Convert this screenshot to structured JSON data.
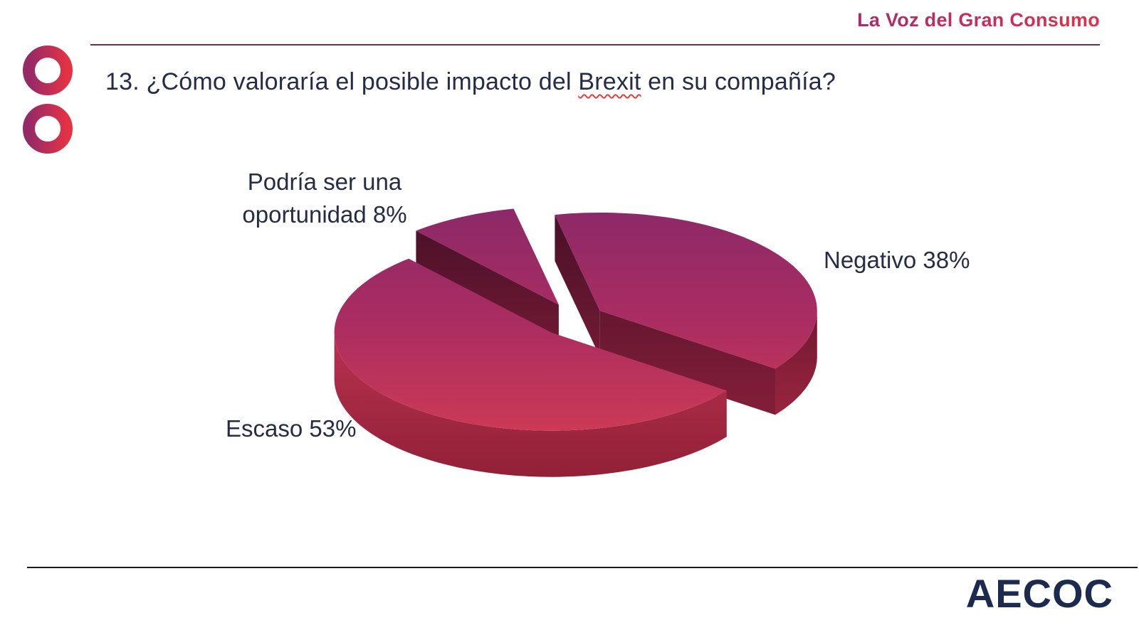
{
  "brand": {
    "text": "La Voz del Gran Consumo"
  },
  "header": {
    "title_pre": "13. ¿Cómo valoraría el posible impacto del ",
    "title_underlined_word": "Brexit",
    "title_post": " en su compañía?"
  },
  "chart_data": {
    "type": "pie",
    "style": "3d-exploded",
    "title": "13. ¿Cómo valoraría el posible impacto del Brexit en su compañía?",
    "legend_position": "none",
    "data_labels": "outside",
    "start_angle_deg": 102,
    "slices": [
      {
        "label": "Negativo",
        "value": 38,
        "display": "Negativo 38%"
      },
      {
        "label": "Escaso",
        "value": 53,
        "display": "Escaso 53%"
      },
      {
        "label": "Podría ser una oportunidad",
        "value": 8,
        "display": "Podría ser una oportunidad 8%",
        "display_lines": [
          "Podría ser una",
          "oportunidad 8%"
        ]
      }
    ],
    "palette": {
      "top_back": "#8B2968",
      "top_mid": "#AB2D61",
      "top_front": "#CE3B55",
      "radial_wall_top": "#471027",
      "radial_wall_bottom": "#801D39",
      "arc_wall_right_top": "#6F1830",
      "arc_wall_right_bottom": "#9B2540",
      "arc_wall_left_top": "#B83250",
      "arc_wall_left_bottom": "#8D1E33"
    }
  },
  "footer": {
    "logo": "AECOC"
  },
  "colors": {
    "background": "#FFFFFF",
    "title_text": "#252C47",
    "brand_gradient_start": "#A92B6C",
    "brand_gradient_end": "#E0314A",
    "ring_gradient_start": "#952A68",
    "ring_gradient_end": "#E23345",
    "top_rule": "#6E2A58",
    "bottom_rule": "#1A1A22",
    "footer_logo": "#1C2B4D",
    "squiggle": "#E04040"
  }
}
